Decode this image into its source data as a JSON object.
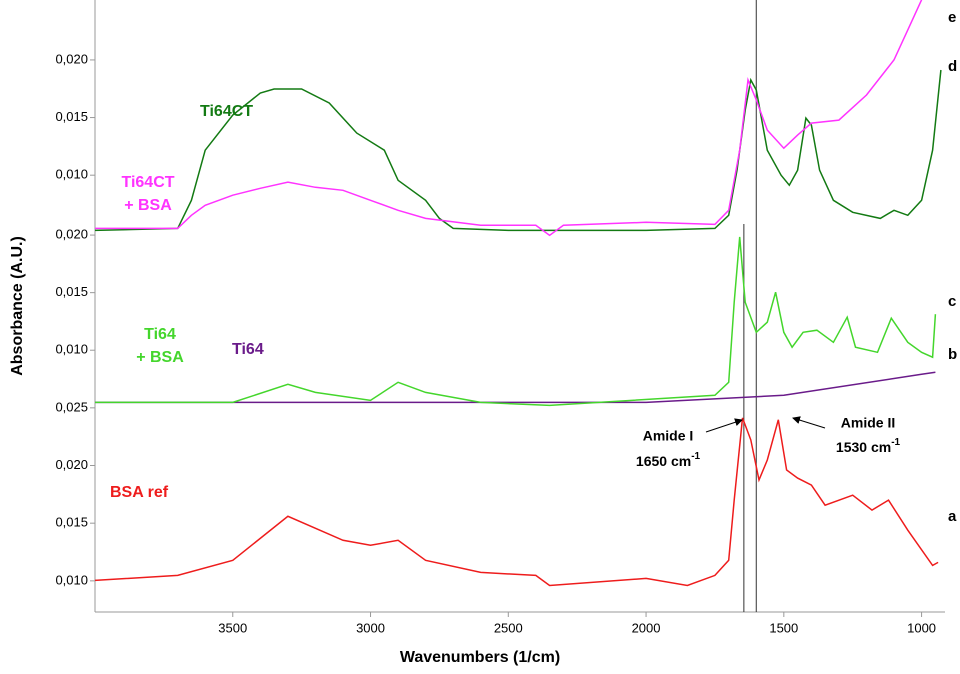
{
  "chart_data": {
    "type": "line",
    "xlabel": "Wavenumbers (1/cm)",
    "ylabel": "Absorbance (A.U.)",
    "xlim": [
      4000,
      915
    ],
    "xticks": [
      3500,
      3000,
      2500,
      2000,
      1500,
      1000
    ],
    "reference_lines": [
      1645,
      1600
    ],
    "panels": [
      {
        "ylim": [
          0.0075,
          0.0252
        ],
        "yticks": [
          {
            "value": 0.02,
            "label": "0,020"
          },
          {
            "value": 0.015,
            "label": "0,015"
          },
          {
            "value": 0.01,
            "label": "0,010"
          }
        ],
        "series": [
          {
            "label": [
              "Ti64CT"
            ],
            "tag": "d",
            "color": "#137a13",
            "x": [
              4000,
              3700,
              3650,
              3600,
              3500,
              3400,
              3350,
              3250,
              3150,
              3050,
              2950,
              2900,
              2800,
              2750,
              2700,
              2500,
              2000,
              1750,
              1700,
              1670,
              1640,
              1620,
              1600,
              1560,
              1510,
              1480,
              1450,
              1420,
              1400,
              1370,
              1320,
              1250,
              1150,
              1100,
              1050,
              1000,
              960,
              930
            ],
            "values": [
              0.00521,
              0.00538,
              0.00782,
              0.01217,
              0.01522,
              0.01713,
              0.01748,
              0.01748,
              0.01626,
              0.01365,
              0.01217,
              0.00956,
              0.00782,
              0.00625,
              0.00538,
              0.00521,
              0.00521,
              0.00538,
              0.00652,
              0.01043,
              0.01565,
              0.01826,
              0.01739,
              0.01217,
              0.01,
              0.00913,
              0.01043,
              0.01495,
              0.01435,
              0.01043,
              0.00782,
              0.00678,
              0.00625,
              0.00695,
              0.00652,
              0.00782,
              0.01217,
              0.01913
            ]
          },
          {
            "label": [
              "Ti64CT",
              "+ BSA"
            ],
            "tag": "e",
            "color": "#ff33ff",
            "x": [
              4000,
              3700,
              3650,
              3600,
              3500,
              3400,
              3300,
              3200,
              3100,
              3000,
              2900,
              2800,
              2600,
              2400,
              2350,
              2300,
              2000,
              1750,
              1700,
              1660,
              1630,
              1600,
              1560,
              1500,
              1450,
              1400,
              1300,
              1200,
              1100,
              1050,
              1000
            ],
            "values": [
              0.00538,
              0.00538,
              0.00652,
              0.00739,
              0.00826,
              0.00886,
              0.00939,
              0.00895,
              0.00869,
              0.00782,
              0.00695,
              0.00625,
              0.00565,
              0.00565,
              0.00478,
              0.00565,
              0.00591,
              0.00573,
              0.00695,
              0.01217,
              0.01826,
              0.01652,
              0.01391,
              0.01234,
              0.01348,
              0.01452,
              0.01478,
              0.01696,
              0.02,
              0.02261,
              0.02522
            ]
          }
        ]
      },
      {
        "ylim": [
          0.0075,
          0.0227
        ],
        "yticks": [
          {
            "value": 0.02,
            "label": "0,020"
          },
          {
            "value": 0.015,
            "label": "0,015"
          },
          {
            "value": 0.01,
            "label": "0,010"
          }
        ],
        "series": [
          {
            "label": [
              "Ti64"
            ],
            "tag": "b",
            "color": "#6a1b8a",
            "x": [
              4000,
              3000,
              2000,
              1500,
              1000,
              950
            ],
            "values": [
              0.00547,
              0.00547,
              0.00547,
              0.00608,
              0.00791,
              0.00808
            ]
          },
          {
            "label": [
              "Ti64",
              "+ BSA"
            ],
            "tag": "c",
            "color": "#44d62c",
            "x": [
              4000,
              3500,
              3300,
              3200,
              3000,
              2900,
              2800,
              2600,
              2350,
              1750,
              1700,
              1680,
              1660,
              1640,
              1600,
              1560,
              1530,
              1500,
              1470,
              1430,
              1380,
              1320,
              1270,
              1240,
              1160,
              1110,
              1050,
              1000,
              960,
              950
            ],
            "values": [
              0.00547,
              0.00547,
              0.00704,
              0.00634,
              0.00564,
              0.00721,
              0.00634,
              0.00547,
              0.00521,
              0.00608,
              0.00721,
              0.01417,
              0.01983,
              0.01417,
              0.01156,
              0.01243,
              0.01504,
              0.01156,
              0.01026,
              0.01156,
              0.01174,
              0.01069,
              0.01287,
              0.01026,
              0.00982,
              0.01278,
              0.01069,
              0.00982,
              0.00939,
              0.01313
            ]
          }
        ]
      },
      {
        "ylim": [
          0.0073,
          0.0275
        ],
        "yticks": [
          {
            "value": 0.025,
            "label": "0,025"
          },
          {
            "value": 0.02,
            "label": "0,020"
          },
          {
            "value": 0.015,
            "label": "0,015"
          },
          {
            "value": 0.01,
            "label": "0,010"
          }
        ],
        "series": [
          {
            "label": [
              "BSA ref"
            ],
            "tag": "a",
            "color": "#ee1c1c",
            "x": [
              4000,
              3700,
              3500,
              3300,
              3100,
              3000,
              2900,
              2800,
              2600,
              2400,
              2350,
              2000,
              1850,
              1750,
              1700,
              1680,
              1650,
              1620,
              1590,
              1560,
              1520,
              1490,
              1450,
              1400,
              1350,
              1250,
              1180,
              1120,
              1050,
              960,
              940
            ],
            "values": [
              0.01004,
              0.01047,
              0.01178,
              0.0156,
              0.01352,
              0.01308,
              0.01352,
              0.01178,
              0.01073,
              0.01047,
              0.0096,
              0.01021,
              0.0096,
              0.01047,
              0.01178,
              0.017,
              0.02413,
              0.02222,
              0.01874,
              0.02048,
              0.02396,
              0.01961,
              0.01891,
              0.0183,
              0.01656,
              0.01743,
              0.01613,
              0.017,
              0.01439,
              0.01134,
              0.0116
            ]
          }
        ]
      }
    ],
    "annotations": [
      {
        "lines": [
          "Amide I",
          "1650 cm"
        ],
        "sup": "-1"
      },
      {
        "lines": [
          "Amide II",
          "1530 cm"
        ],
        "sup": "-1"
      }
    ]
  }
}
